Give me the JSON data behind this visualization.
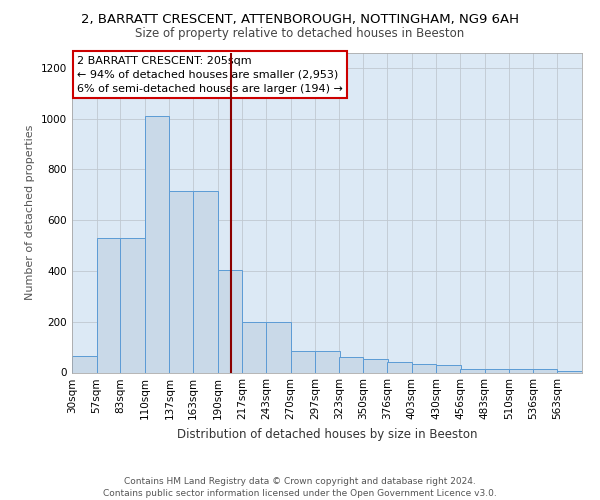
{
  "title_line1": "2, BARRATT CRESCENT, ATTENBOROUGH, NOTTINGHAM, NG9 6AH",
  "title_line2": "Size of property relative to detached houses in Beeston",
  "xlabel": "Distribution of detached houses by size in Beeston",
  "ylabel": "Number of detached properties",
  "bar_edges": [
    30,
    57,
    83,
    110,
    137,
    163,
    190,
    217,
    243,
    270,
    297,
    323,
    350,
    376,
    403,
    430,
    456,
    483,
    510,
    536,
    563
  ],
  "bar_heights": [
    65,
    530,
    530,
    1010,
    715,
    715,
    405,
    200,
    200,
    85,
    85,
    60,
    55,
    40,
    35,
    30,
    15,
    15,
    12,
    12,
    5
  ],
  "bar_color": "#c9d9e8",
  "bar_edge_color": "#5b9bd5",
  "property_size": 205,
  "property_line_color": "#8b0000",
  "annotation_text": "2 BARRATT CRESCENT: 205sqm\n← 94% of detached houses are smaller (2,953)\n6% of semi-detached houses are larger (194) →",
  "annotation_box_color": "white",
  "annotation_box_edge_color": "#cc0000",
  "ylim": [
    0,
    1260
  ],
  "yticks": [
    0,
    200,
    400,
    600,
    800,
    1000,
    1200
  ],
  "footer_line1": "Contains HM Land Registry data © Crown copyright and database right 2024.",
  "footer_line2": "Contains public sector information licensed under the Open Government Licence v3.0.",
  "bg_color": "#dce9f5",
  "grid_color": "#c0c8d0",
  "title1_fontsize": 9.5,
  "title2_fontsize": 8.5,
  "xlabel_fontsize": 8.5,
  "ylabel_fontsize": 8,
  "tick_fontsize": 7.5,
  "footer_fontsize": 6.5,
  "annot_fontsize": 8
}
